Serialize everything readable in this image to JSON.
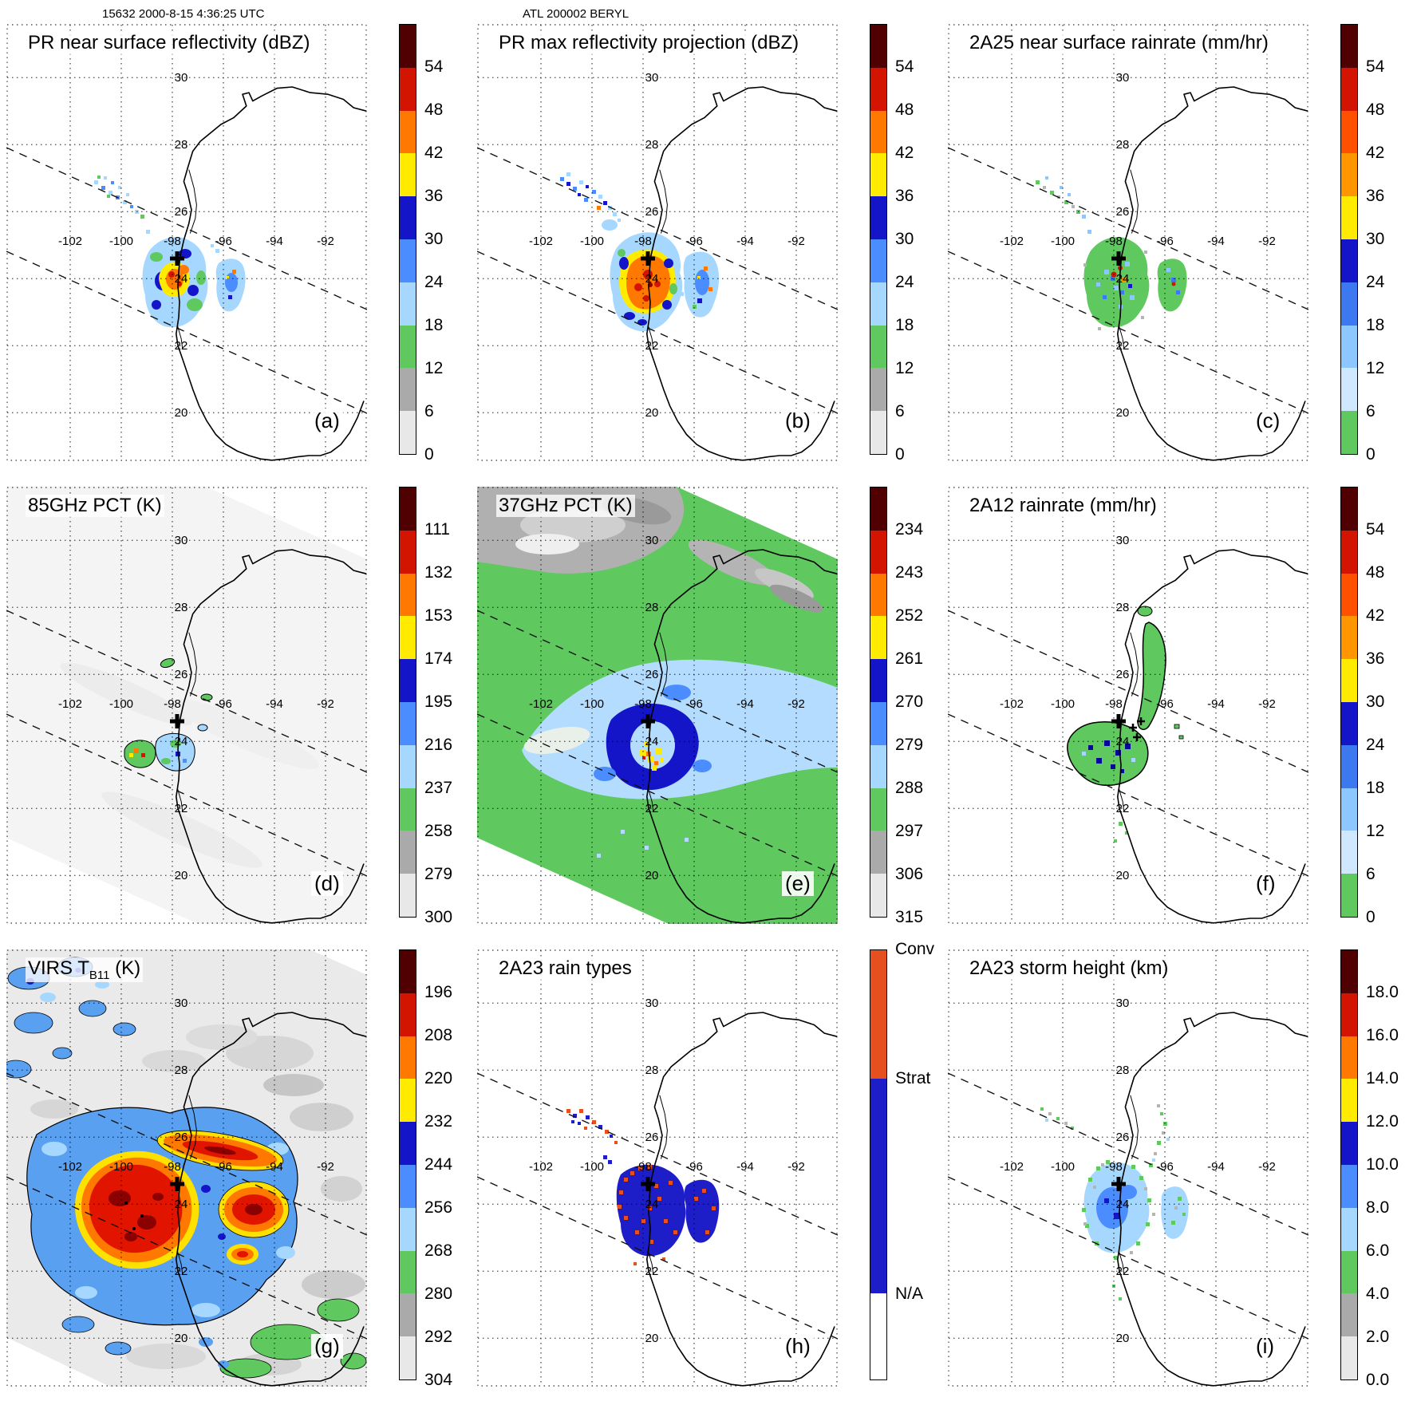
{
  "figure": {
    "header_left": "15632 2000-8-15 4:36:25 UTC",
    "header_center": "ATL 200002 BERYL"
  },
  "chart_data": {
    "type": "heatmap",
    "layout": {
      "rows": 3,
      "cols": 3,
      "legend_position": "right-of-each-panel",
      "grid": "dotted-latlon"
    },
    "title": "ATL 200002 BERYL",
    "overpass_label": "15632 2000-8-15 4:36:25 UTC",
    "geo": {
      "lon_tick_labels": [
        "-102",
        "-100",
        "-98",
        "-96",
        "-94",
        "-92"
      ],
      "lat_tick_labels": [
        "30",
        "28",
        "26",
        "24",
        "22",
        "20"
      ],
      "storm_center_symbol": "+"
    },
    "color_scales": {
      "reflectivity_pct_height": [
        "#500000",
        "#d21400",
        "#ff7800",
        "#ffeb00",
        "#1414c8",
        "#4b8cff",
        "#a5d7ff",
        "#5fc85f",
        "#aaaaaa",
        "#e8e8e8"
      ],
      "rainrate": [
        "#500000",
        "#d21400",
        "#ff5000",
        "#ff9600",
        "#ffeb00",
        "#1414c8",
        "#3c78f0",
        "#8cc8ff",
        "#cfe8ff",
        "#5fc85f"
      ]
    },
    "panels": [
      {
        "id": "a",
        "letter": "(a)",
        "title": "PR near surface reflectivity (dBZ)",
        "units": "dBZ",
        "colorbar": {
          "scale": "reflectivity_pct_height",
          "ticks": [
            "54",
            "48",
            "42",
            "36",
            "30",
            "24",
            "18",
            "12",
            "6",
            "0"
          ]
        }
      },
      {
        "id": "b",
        "letter": "(b)",
        "title": "PR max reflectivity projection (dBZ)",
        "units": "dBZ",
        "colorbar": {
          "scale": "reflectivity_pct_height",
          "ticks": [
            "54",
            "48",
            "42",
            "36",
            "30",
            "24",
            "18",
            "12",
            "6",
            "0"
          ]
        }
      },
      {
        "id": "c",
        "letter": "(c)",
        "title": "2A25 near surface rainrate (mm/hr)",
        "units": "mm/hr",
        "colorbar": {
          "scale": "rainrate",
          "ticks": [
            "54",
            "48",
            "42",
            "36",
            "30",
            "24",
            "18",
            "12",
            "6",
            "0"
          ]
        }
      },
      {
        "id": "d",
        "letter": "(d)",
        "title": "85GHz PCT (K)",
        "units": "K",
        "colorbar": {
          "scale": "reflectivity_pct_height",
          "ticks": [
            "111",
            "132",
            "153",
            "174",
            "195",
            "216",
            "237",
            "258",
            "279",
            "300"
          ]
        }
      },
      {
        "id": "e",
        "letter": "(e)",
        "title": "37GHz PCT (K)",
        "units": "K",
        "colorbar": {
          "scale": "reflectivity_pct_height",
          "ticks": [
            "234",
            "243",
            "252",
            "261",
            "270",
            "279",
            "288",
            "297",
            "306",
            "315"
          ]
        }
      },
      {
        "id": "f",
        "letter": "(f)",
        "title": "2A12 rainrate (mm/hr)",
        "units": "mm/hr",
        "colorbar": {
          "scale": "rainrate",
          "ticks": [
            "54",
            "48",
            "42",
            "36",
            "30",
            "24",
            "18",
            "12",
            "6",
            "0"
          ]
        }
      },
      {
        "id": "g",
        "letter": "(g)",
        "title": "VIRS TB11 (K)",
        "title_prefix": "VIRS T",
        "title_sub": "B11",
        "title_suffix": " (K)",
        "units": "K",
        "colorbar": {
          "scale": "reflectivity_pct_height",
          "ticks": [
            "196",
            "208",
            "220",
            "232",
            "244",
            "256",
            "268",
            "280",
            "292",
            "304"
          ]
        }
      },
      {
        "id": "h",
        "letter": "(h)",
        "title": "2A23 rain types",
        "units": "category",
        "colorbar": {
          "categories": [
            {
              "label": "Conv",
              "color": "#e6501e",
              "frac": 0.3
            },
            {
              "label": "Strat",
              "color": "#1e1ec8",
              "frac": 0.5
            },
            {
              "label": "N/A",
              "color": "#ffffff",
              "frac": 0.2
            }
          ]
        }
      },
      {
        "id": "i",
        "letter": "(i)",
        "title": "2A23 storm height (km)",
        "units": "km",
        "colorbar": {
          "scale": "reflectivity_pct_height",
          "ticks": [
            "18.0",
            "16.0",
            "14.0",
            "12.0",
            "10.0",
            "8.0",
            "6.0",
            "4.0",
            "2.0",
            "0.0"
          ]
        }
      }
    ]
  }
}
